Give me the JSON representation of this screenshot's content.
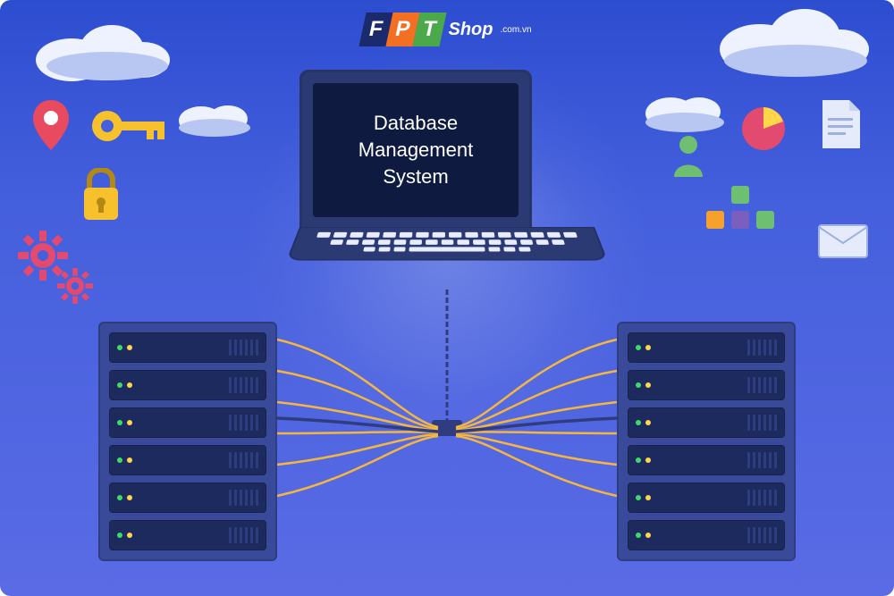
{
  "logo": {
    "f": "F",
    "p": "P",
    "t": "T",
    "f_color": "#1a2a6d",
    "p_color": "#f36f21",
    "t_color": "#4ba94b",
    "text": "Shop",
    "sub": ".com.vn"
  },
  "laptop": {
    "title_line1": "Database",
    "title_line2": "Management",
    "title_line3": "System",
    "screen_bg": "#0e1a3f",
    "frame_bg": "#2b3a73",
    "text_color": "#ffffff",
    "font_size": 22
  },
  "background": {
    "gradient_top": "#2d4dd0",
    "gradient_mid": "#4560dd",
    "gradient_bottom": "#5a6be5"
  },
  "clouds": {
    "fill_light": "#eef2ff",
    "fill_shadow": "#b8c6f2"
  },
  "servers": {
    "units": 6,
    "body_color": "#394a9b",
    "unit_color": "#1d2a5e",
    "led_colors": [
      "#3ddc6a",
      "#ffd54a"
    ],
    "slot_count": 6
  },
  "cables": {
    "wire_color": "#f4b63f",
    "core_color": "#2f3c80"
  },
  "icons": {
    "pin": {
      "fill": "#e84a5f",
      "dot": "#ffffff"
    },
    "key": {
      "fill": "#f6c12d"
    },
    "lock": {
      "fill": "#f6c12d",
      "shackle": "#b38914"
    },
    "gear": {
      "fill": "#e34a6f"
    },
    "person": {
      "fill": "#6fbf73"
    },
    "pie": {
      "fill": "#e34a6f",
      "slice": "#ffd54a"
    },
    "doc": {
      "fill": "#e6ebfb",
      "lines": "#9fb1e3"
    },
    "mail": {
      "fill": "#e6ebfb",
      "stroke": "#9fb1e3"
    },
    "tiles": {
      "green": "#6fbf73",
      "orange": "#f6a12d",
      "purple": "#7a5fbf"
    }
  }
}
